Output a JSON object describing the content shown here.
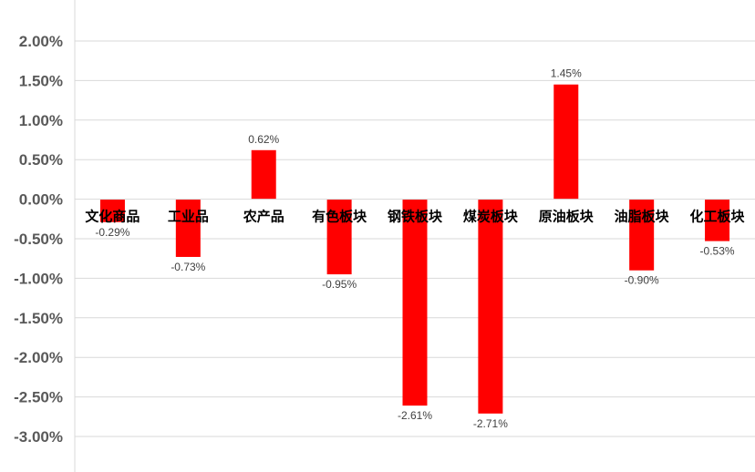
{
  "chart_data": {
    "type": "bar",
    "categories": [
      "文化商品",
      "工业品",
      "农产品",
      "有色板块",
      "钢铁板块",
      "煤炭板块",
      "原油板块",
      "油脂板块",
      "化工板块"
    ],
    "values": [
      -0.29,
      -0.73,
      0.62,
      -0.95,
      -2.61,
      -2.71,
      1.45,
      -0.9,
      -0.53
    ],
    "value_labels": [
      "-0.29%",
      "-0.73%",
      "0.62%",
      "-0.95%",
      "-2.61%",
      "-2.71%",
      "1.45%",
      "-0.90%",
      "-0.53%"
    ],
    "y_ticks": [
      2.0,
      1.5,
      1.0,
      0.5,
      0.0,
      -0.5,
      -1.0,
      -1.5,
      -2.0,
      -2.5,
      -3.0
    ],
    "y_tick_labels": [
      "2.00%",
      "1.50%",
      "1.00%",
      "0.50%",
      "0.00%",
      "-0.50%",
      "-1.00%",
      "-1.50%",
      "-2.00%",
      "-2.50%",
      "-3.00%"
    ],
    "ylim": [
      -3.0,
      2.0
    ],
    "grid": true,
    "legend": "none",
    "bar_color": "#ff0000",
    "title": "",
    "xlabel": "",
    "ylabel": ""
  }
}
